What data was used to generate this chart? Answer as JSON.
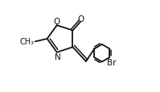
{
  "bg_color": "#ffffff",
  "line_color": "#111111",
  "lw": 1.3,
  "fs": 7.5,
  "figsize": [
    1.99,
    1.15
  ],
  "dpi": 100,
  "xlim": [
    0.0,
    1.0
  ],
  "ylim": [
    0.0,
    1.0
  ]
}
